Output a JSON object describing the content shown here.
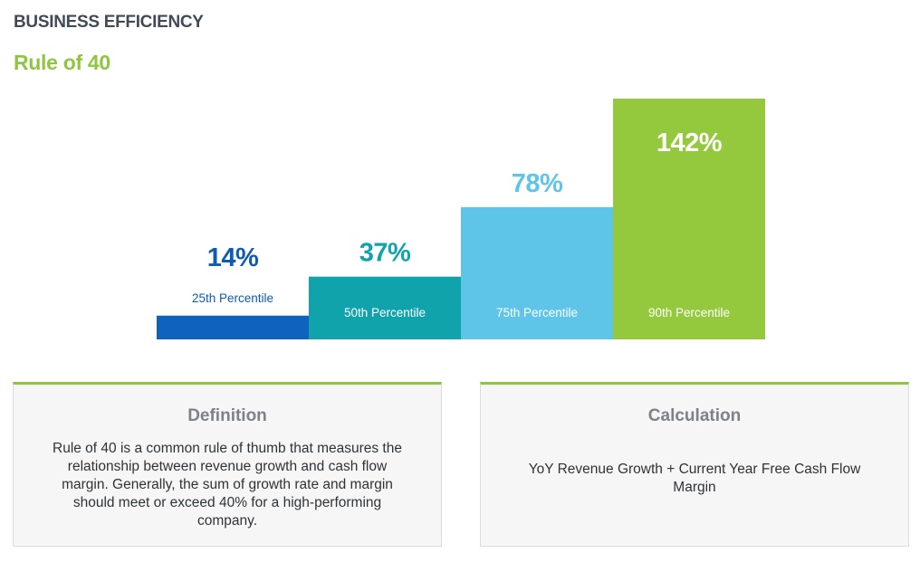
{
  "header": {
    "section_title": "BUSINESS EFFICIENCY",
    "chart_title": "Rule of 40"
  },
  "chart_data": {
    "type": "bar",
    "title": "Rule of 40",
    "categories": [
      "25th Percentile",
      "50th Percentile",
      "75th Percentile",
      "90th Percentile"
    ],
    "values": [
      14,
      37,
      78,
      142
    ],
    "value_labels": [
      "14%",
      "37%",
      "78%",
      "142%"
    ],
    "colors": [
      "#0d63bd",
      "#11a3ac",
      "#5ec5e8",
      "#95c93d"
    ],
    "ylim": [
      0,
      142
    ],
    "grid": false,
    "legend": "none"
  },
  "cards": {
    "definition": {
      "heading": "Definition",
      "body": "Rule of 40 is a common rule of thumb that measures the relationship between revenue growth and cash flow margin. Generally, the sum of growth rate and margin should meet or exceed 40% for a high-performing company."
    },
    "calculation": {
      "heading": "Calculation",
      "body": "YoY Revenue Growth + Current Year Free Cash Flow Margin"
    }
  }
}
